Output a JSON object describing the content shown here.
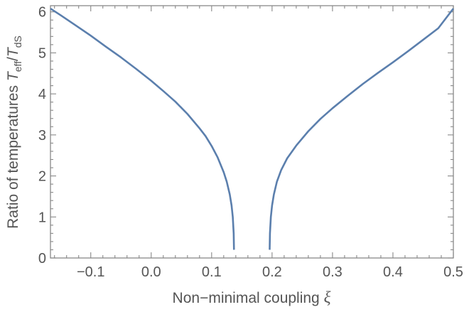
{
  "chart_data": {
    "type": "line",
    "title": "",
    "xlabel": "Non−minimal coupling",
    "xlabel_symbol": "ξ",
    "ylabel": "Ratio of temperatures",
    "ylabel_symbol": "T",
    "ylabel_sub1": "eff",
    "ylabel_slash": "/",
    "ylabel_sub2": "dS",
    "xlim": [
      -0.1667,
      0.5
    ],
    "ylim": [
      0,
      6.15
    ],
    "grid": false,
    "legend": "none",
    "xticks": [
      {
        "value": -0.1,
        "label": "−0.1"
      },
      {
        "value": 0.0,
        "label": "0.0"
      },
      {
        "value": 0.1,
        "label": "0.1"
      },
      {
        "value": 0.2,
        "label": "0.2"
      },
      {
        "value": 0.3,
        "label": "0.3"
      },
      {
        "value": 0.4,
        "label": "0.4"
      },
      {
        "value": 0.5,
        "label": "0.5"
      }
    ],
    "yticks": [
      {
        "value": 0,
        "label": "0"
      },
      {
        "value": 1,
        "label": "1"
      },
      {
        "value": 2,
        "label": "2"
      },
      {
        "value": 3,
        "label": "3"
      },
      {
        "value": 4,
        "label": "4"
      },
      {
        "value": 5,
        "label": "5"
      },
      {
        "value": 6,
        "label": "6"
      }
    ],
    "series": [
      {
        "color": "#5b7fad",
        "points": [
          [
            -0.1667,
            6.08
          ],
          [
            -0.15,
            5.92
          ],
          [
            -0.125,
            5.67
          ],
          [
            -0.1,
            5.42
          ],
          [
            -0.075,
            5.15
          ],
          [
            -0.05,
            4.89
          ],
          [
            -0.025,
            4.61
          ],
          [
            0.0,
            4.32
          ],
          [
            0.02,
            4.07
          ],
          [
            0.04,
            3.81
          ],
          [
            0.06,
            3.51
          ],
          [
            0.08,
            3.16
          ],
          [
            0.09,
            2.97
          ],
          [
            0.1,
            2.73
          ],
          [
            0.11,
            2.45
          ],
          [
            0.12,
            2.09
          ],
          [
            0.125,
            1.86
          ],
          [
            0.13,
            1.55
          ],
          [
            0.133,
            1.28
          ],
          [
            0.135,
            1.0
          ],
          [
            0.1365,
            0.6
          ],
          [
            0.137,
            0.2
          ]
        ]
      },
      {
        "color": "#5b7fad",
        "points": [
          [
            0.196,
            0.2
          ],
          [
            0.1965,
            0.6
          ],
          [
            0.198,
            1.0
          ],
          [
            0.2,
            1.28
          ],
          [
            0.203,
            1.55
          ],
          [
            0.208,
            1.86
          ],
          [
            0.215,
            2.14
          ],
          [
            0.225,
            2.43
          ],
          [
            0.24,
            2.74
          ],
          [
            0.26,
            3.09
          ],
          [
            0.28,
            3.39
          ],
          [
            0.3,
            3.65
          ],
          [
            0.325,
            3.95
          ],
          [
            0.35,
            4.24
          ],
          [
            0.375,
            4.51
          ],
          [
            0.4,
            4.77
          ],
          [
            0.425,
            5.04
          ],
          [
            0.45,
            5.32
          ],
          [
            0.475,
            5.6
          ],
          [
            0.5,
            6.08
          ]
        ]
      }
    ]
  }
}
